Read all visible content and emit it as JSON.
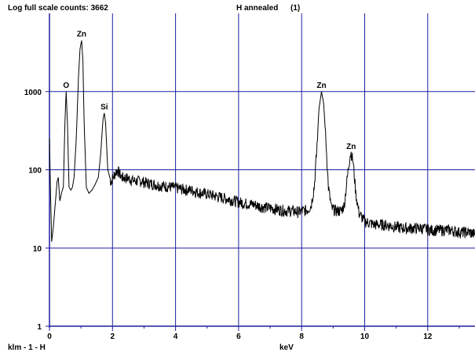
{
  "header": {
    "full_scale_label": "Log full scale counts: 3662",
    "sample_title": "H annealed",
    "spectrum_index": "(1)"
  },
  "footer": {
    "sample_id": "klm - 1 - H",
    "x_unit": "keV"
  },
  "colors": {
    "grid": "#1f1fa0",
    "trace": "#000000",
    "background": "#ffffff"
  },
  "chart_data": {
    "type": "line",
    "title": "H annealed",
    "xlabel": "keV",
    "ylabel": "",
    "yscale": "log",
    "xlim": [
      0,
      13.5
    ],
    "ylim": [
      1,
      10000
    ],
    "x_ticks": [
      0,
      2,
      4,
      6,
      8,
      10,
      12
    ],
    "y_ticks": [
      1,
      10,
      100,
      1000
    ],
    "grid": true,
    "full_scale_counts": 3662,
    "peaks": [
      {
        "label": "O",
        "x": 0.53,
        "y": 1000
      },
      {
        "label": "Zn",
        "x": 1.02,
        "y": 4500
      },
      {
        "label": "Si",
        "x": 1.74,
        "y": 530
      },
      {
        "label": "Zn",
        "x": 8.63,
        "y": 1000
      },
      {
        "label": "Zn",
        "x": 9.57,
        "y": 165
      }
    ],
    "series": [
      {
        "values": [
          [
            0.0,
            250
          ],
          [
            0.03,
            60
          ],
          [
            0.07,
            12
          ],
          [
            0.12,
            18
          ],
          [
            0.18,
            35
          ],
          [
            0.24,
            70
          ],
          [
            0.28,
            80
          ],
          [
            0.33,
            40
          ],
          [
            0.38,
            50
          ],
          [
            0.44,
            60
          ],
          [
            0.49,
            400
          ],
          [
            0.53,
            1000
          ],
          [
            0.57,
            400
          ],
          [
            0.62,
            60
          ],
          [
            0.68,
            55
          ],
          [
            0.73,
            60
          ],
          [
            0.78,
            80
          ],
          [
            0.85,
            250
          ],
          [
            0.92,
            1500
          ],
          [
            0.97,
            3500
          ],
          [
            1.02,
            4500
          ],
          [
            1.06,
            2500
          ],
          [
            1.1,
            400
          ],
          [
            1.17,
            60
          ],
          [
            1.25,
            50
          ],
          [
            1.35,
            55
          ],
          [
            1.45,
            65
          ],
          [
            1.55,
            80
          ],
          [
            1.62,
            150
          ],
          [
            1.7,
            450
          ],
          [
            1.74,
            530
          ],
          [
            1.78,
            400
          ],
          [
            1.85,
            100
          ],
          [
            1.95,
            70
          ],
          [
            2.05,
            85
          ],
          [
            2.15,
            100
          ],
          [
            2.3,
            80
          ],
          [
            2.5,
            78
          ],
          [
            2.7,
            72
          ],
          [
            2.9,
            72
          ],
          [
            3.1,
            68
          ],
          [
            3.3,
            66
          ],
          [
            3.5,
            63
          ],
          [
            3.7,
            62
          ],
          [
            3.9,
            60
          ],
          [
            4.1,
            58
          ],
          [
            4.3,
            56
          ],
          [
            4.5,
            55
          ],
          [
            4.7,
            52
          ],
          [
            4.9,
            50
          ],
          [
            5.1,
            48
          ],
          [
            5.3,
            46
          ],
          [
            5.5,
            44
          ],
          [
            5.7,
            42
          ],
          [
            5.9,
            40
          ],
          [
            6.1,
            38
          ],
          [
            6.3,
            37
          ],
          [
            6.5,
            36
          ],
          [
            6.7,
            34
          ],
          [
            6.9,
            33
          ],
          [
            7.1,
            32
          ],
          [
            7.3,
            31
          ],
          [
            7.5,
            30
          ],
          [
            7.7,
            30
          ],
          [
            7.9,
            29
          ],
          [
            8.05,
            30
          ],
          [
            8.2,
            31
          ],
          [
            8.3,
            35
          ],
          [
            8.4,
            60
          ],
          [
            8.48,
            180
          ],
          [
            8.55,
            600
          ],
          [
            8.63,
            1000
          ],
          [
            8.7,
            700
          ],
          [
            8.78,
            200
          ],
          [
            8.85,
            60
          ],
          [
            8.95,
            32
          ],
          [
            9.1,
            30
          ],
          [
            9.25,
            30
          ],
          [
            9.35,
            35
          ],
          [
            9.45,
            80
          ],
          [
            9.53,
            150
          ],
          [
            9.57,
            165
          ],
          [
            9.63,
            130
          ],
          [
            9.72,
            50
          ],
          [
            9.82,
            28
          ],
          [
            10.0,
            22
          ],
          [
            10.3,
            20
          ],
          [
            10.6,
            20
          ],
          [
            10.9,
            19
          ],
          [
            11.2,
            18
          ],
          [
            11.5,
            18
          ],
          [
            11.8,
            18
          ],
          [
            12.1,
            17
          ],
          [
            12.4,
            17
          ],
          [
            12.7,
            17
          ],
          [
            13.0,
            16
          ],
          [
            13.3,
            16
          ],
          [
            13.5,
            15
          ]
        ]
      }
    ]
  }
}
